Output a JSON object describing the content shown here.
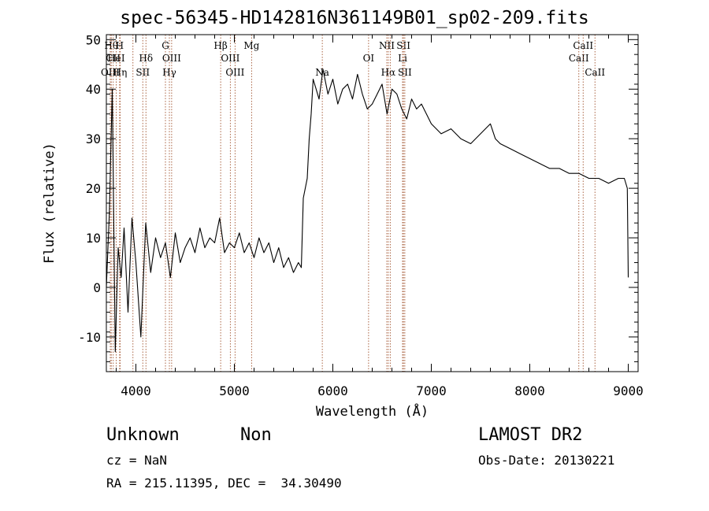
{
  "header": {
    "title": "spec-56345-HD142816N361149B01_sp02-209.fits"
  },
  "footer": {
    "object_class": "Unknown",
    "subclass": "Non",
    "survey": "LAMOST DR2",
    "cz": "cz = NaN",
    "obs_date": "Obs-Date: 20130221",
    "coords": "RA = 215.11395, DEC =  34.30490"
  },
  "chart_data": {
    "type": "line",
    "title": "spec-56345-HD142816N361149B01_sp02-209.fits",
    "xlabel": "Wavelength (Å)",
    "ylabel": "Flux (relative)",
    "xlim": [
      3700,
      9100
    ],
    "ylim": [
      -17,
      51
    ],
    "xticks": [
      4000,
      5000,
      6000,
      7000,
      8000,
      9000
    ],
    "yticks": [
      -10,
      0,
      10,
      20,
      30,
      40,
      50
    ],
    "grid": false,
    "line_color": "#000000",
    "marker_color": "#a0522d",
    "series": [
      {
        "x": [
          3700,
          3730,
          3760,
          3790,
          3820,
          3850,
          3880,
          3920,
          3960,
          4000,
          4050,
          4100,
          4150,
          4200,
          4250,
          4300,
          4350,
          4400,
          4450,
          4500,
          4550,
          4600,
          4650,
          4700,
          4750,
          4800,
          4850,
          4900,
          4950,
          5000,
          5050,
          5100,
          5150,
          5200,
          5250,
          5300,
          5350,
          5400,
          5450,
          5500,
          5550,
          5600,
          5650,
          5680,
          5700,
          5720,
          5740,
          5760,
          5780,
          5800,
          5830,
          5860,
          5900,
          5950,
          6000,
          6050,
          6100,
          6150,
          6200,
          6250,
          6300,
          6350,
          6400,
          6450,
          6500,
          6550,
          6600,
          6650,
          6700,
          6750,
          6800,
          6850,
          6900,
          6950,
          7000,
          7100,
          7200,
          7300,
          7400,
          7500,
          7600,
          7650,
          7700,
          7800,
          7900,
          8000,
          8100,
          8200,
          8300,
          8400,
          8500,
          8600,
          8700,
          8800,
          8900,
          8960,
          8990,
          9000
        ],
        "y": [
          0,
          15,
          40,
          -13,
          8,
          2,
          12,
          -5,
          14,
          5,
          -10,
          13,
          3,
          10,
          6,
          9,
          2,
          11,
          5,
          8,
          10,
          7,
          12,
          8,
          10,
          9,
          14,
          7,
          9,
          8,
          11,
          7,
          9,
          6,
          10,
          7,
          9,
          5,
          8,
          4,
          6,
          3,
          5,
          4,
          18,
          20,
          22,
          30,
          35,
          42,
          40,
          38,
          44,
          39,
          42,
          37,
          40,
          41,
          38,
          43,
          39,
          36,
          37,
          39,
          41,
          35,
          40,
          39,
          36,
          34,
          38,
          36,
          37,
          35,
          33,
          31,
          32,
          30,
          29,
          31,
          33,
          30,
          29,
          28,
          27,
          26,
          25,
          24,
          24,
          23,
          23,
          22,
          22,
          21,
          22,
          22,
          20,
          2
        ]
      }
    ],
    "line_markers": [
      {
        "wl": 3750,
        "label": "Hθ",
        "row": 1
      },
      {
        "wl": 3770,
        "label": "CII",
        "row": 2
      },
      {
        "wl": 3740,
        "label": "OIII",
        "row": 3
      },
      {
        "wl": 3800,
        "label": "HeI",
        "row": 2
      },
      {
        "wl": 3835,
        "label": "H",
        "row": 1
      },
      {
        "wl": 3840,
        "label": "Hη",
        "row": 3
      },
      {
        "wl": 3970,
        "label": "",
        "row": 0
      },
      {
        "wl": 4102,
        "label": "Hδ",
        "row": 2
      },
      {
        "wl": 4070,
        "label": "SII",
        "row": 3
      },
      {
        "wl": 4300,
        "label": "G",
        "row": 1
      },
      {
        "wl": 4340,
        "label": "Hγ",
        "row": 3
      },
      {
        "wl": 4363,
        "label": "OIII",
        "row": 2
      },
      {
        "wl": 4861,
        "label": "Hβ",
        "row": 1
      },
      {
        "wl": 4959,
        "label": "OIII",
        "row": 2
      },
      {
        "wl": 5007,
        "label": "OIII",
        "row": 3
      },
      {
        "wl": 5175,
        "label": "Mg",
        "row": 1
      },
      {
        "wl": 5893,
        "label": "Na",
        "row": 3
      },
      {
        "wl": 6363,
        "label": "OI",
        "row": 2
      },
      {
        "wl": 6548,
        "label": "NII",
        "row": 1
      },
      {
        "wl": 6563,
        "label": "Hα",
        "row": 3
      },
      {
        "wl": 6583,
        "label": "",
        "row": 0
      },
      {
        "wl": 6708,
        "label": "Li",
        "row": 2
      },
      {
        "wl": 6717,
        "label": "SII",
        "row": 1
      },
      {
        "wl": 6731,
        "label": "SII",
        "row": 3
      },
      {
        "wl": 8498,
        "label": "CaII",
        "row": 2
      },
      {
        "wl": 8542,
        "label": "CaII",
        "row": 1
      },
      {
        "wl": 8662,
        "label": "CaII",
        "row": 3
      }
    ]
  }
}
